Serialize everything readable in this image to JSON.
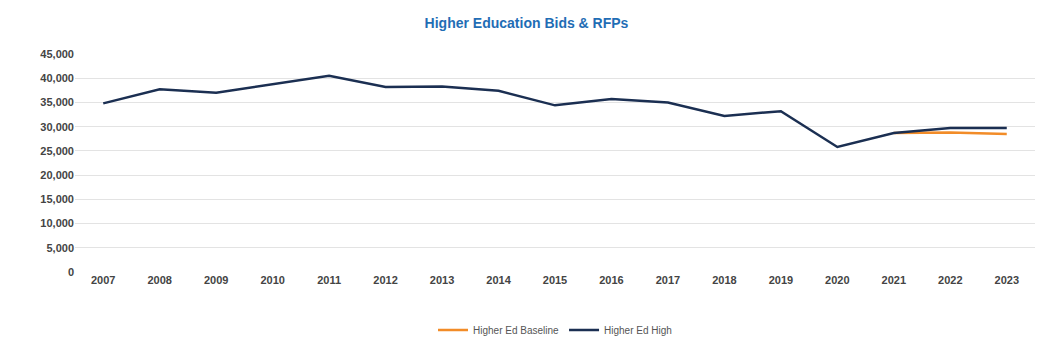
{
  "chart_data": {
    "type": "line",
    "title": "Higher Education Bids & RFPs",
    "categories": [
      "2007",
      "2008",
      "2009",
      "2010",
      "2011",
      "2012",
      "2013",
      "2014",
      "2015",
      "2016",
      "2017",
      "2018",
      "2019",
      "2020",
      "2021",
      "2022",
      "2023"
    ],
    "series": [
      {
        "name": "Higher Ed Baseline",
        "color": "#f28c28",
        "values": [
          null,
          null,
          null,
          null,
          null,
          null,
          null,
          null,
          null,
          null,
          null,
          null,
          null,
          null,
          28700,
          28800,
          28500
        ]
      },
      {
        "name": "Higher Ed High",
        "color": "#1b2f52",
        "values": [
          34800,
          37700,
          37000,
          38800,
          40500,
          38200,
          38300,
          37400,
          34400,
          35700,
          35000,
          32200,
          33200,
          25800,
          28700,
          29700,
          29700
        ]
      }
    ],
    "ylim": [
      0,
      45000
    ],
    "yticks": [
      0,
      {
        "value": 5000,
        "label": "5,000"
      },
      {
        "value": 10000,
        "label": "10,000"
      },
      {
        "value": 15000,
        "label": "15,000"
      },
      {
        "value": 20000,
        "label": "20,000"
      },
      {
        "value": 25000,
        "label": "25,000"
      },
      {
        "value": 30000,
        "label": "30,000"
      },
      {
        "value": 35000,
        "label": "35,000"
      },
      {
        "value": 40000,
        "label": "40,000"
      },
      {
        "value": 45000,
        "label": "45,000"
      }
    ],
    "grid": true,
    "legend": "bottom"
  }
}
